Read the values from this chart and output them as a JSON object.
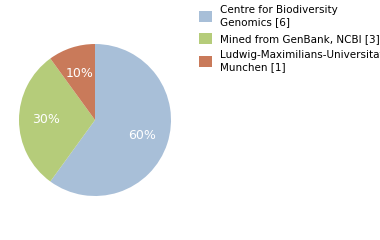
{
  "labels": [
    "Centre for Biodiversity\nGenomics [6]",
    "Mined from GenBank, NCBI [3]",
    "Ludwig-Maximilians-Universitat\nMunchen [1]"
  ],
  "values": [
    60,
    30,
    10
  ],
  "colors": [
    "#a8bfd8",
    "#b5cc7a",
    "#c97a5a"
  ],
  "startangle": 90,
  "legend_fontsize": 7.5,
  "autopct_fontsize": 9,
  "background_color": "#ffffff"
}
